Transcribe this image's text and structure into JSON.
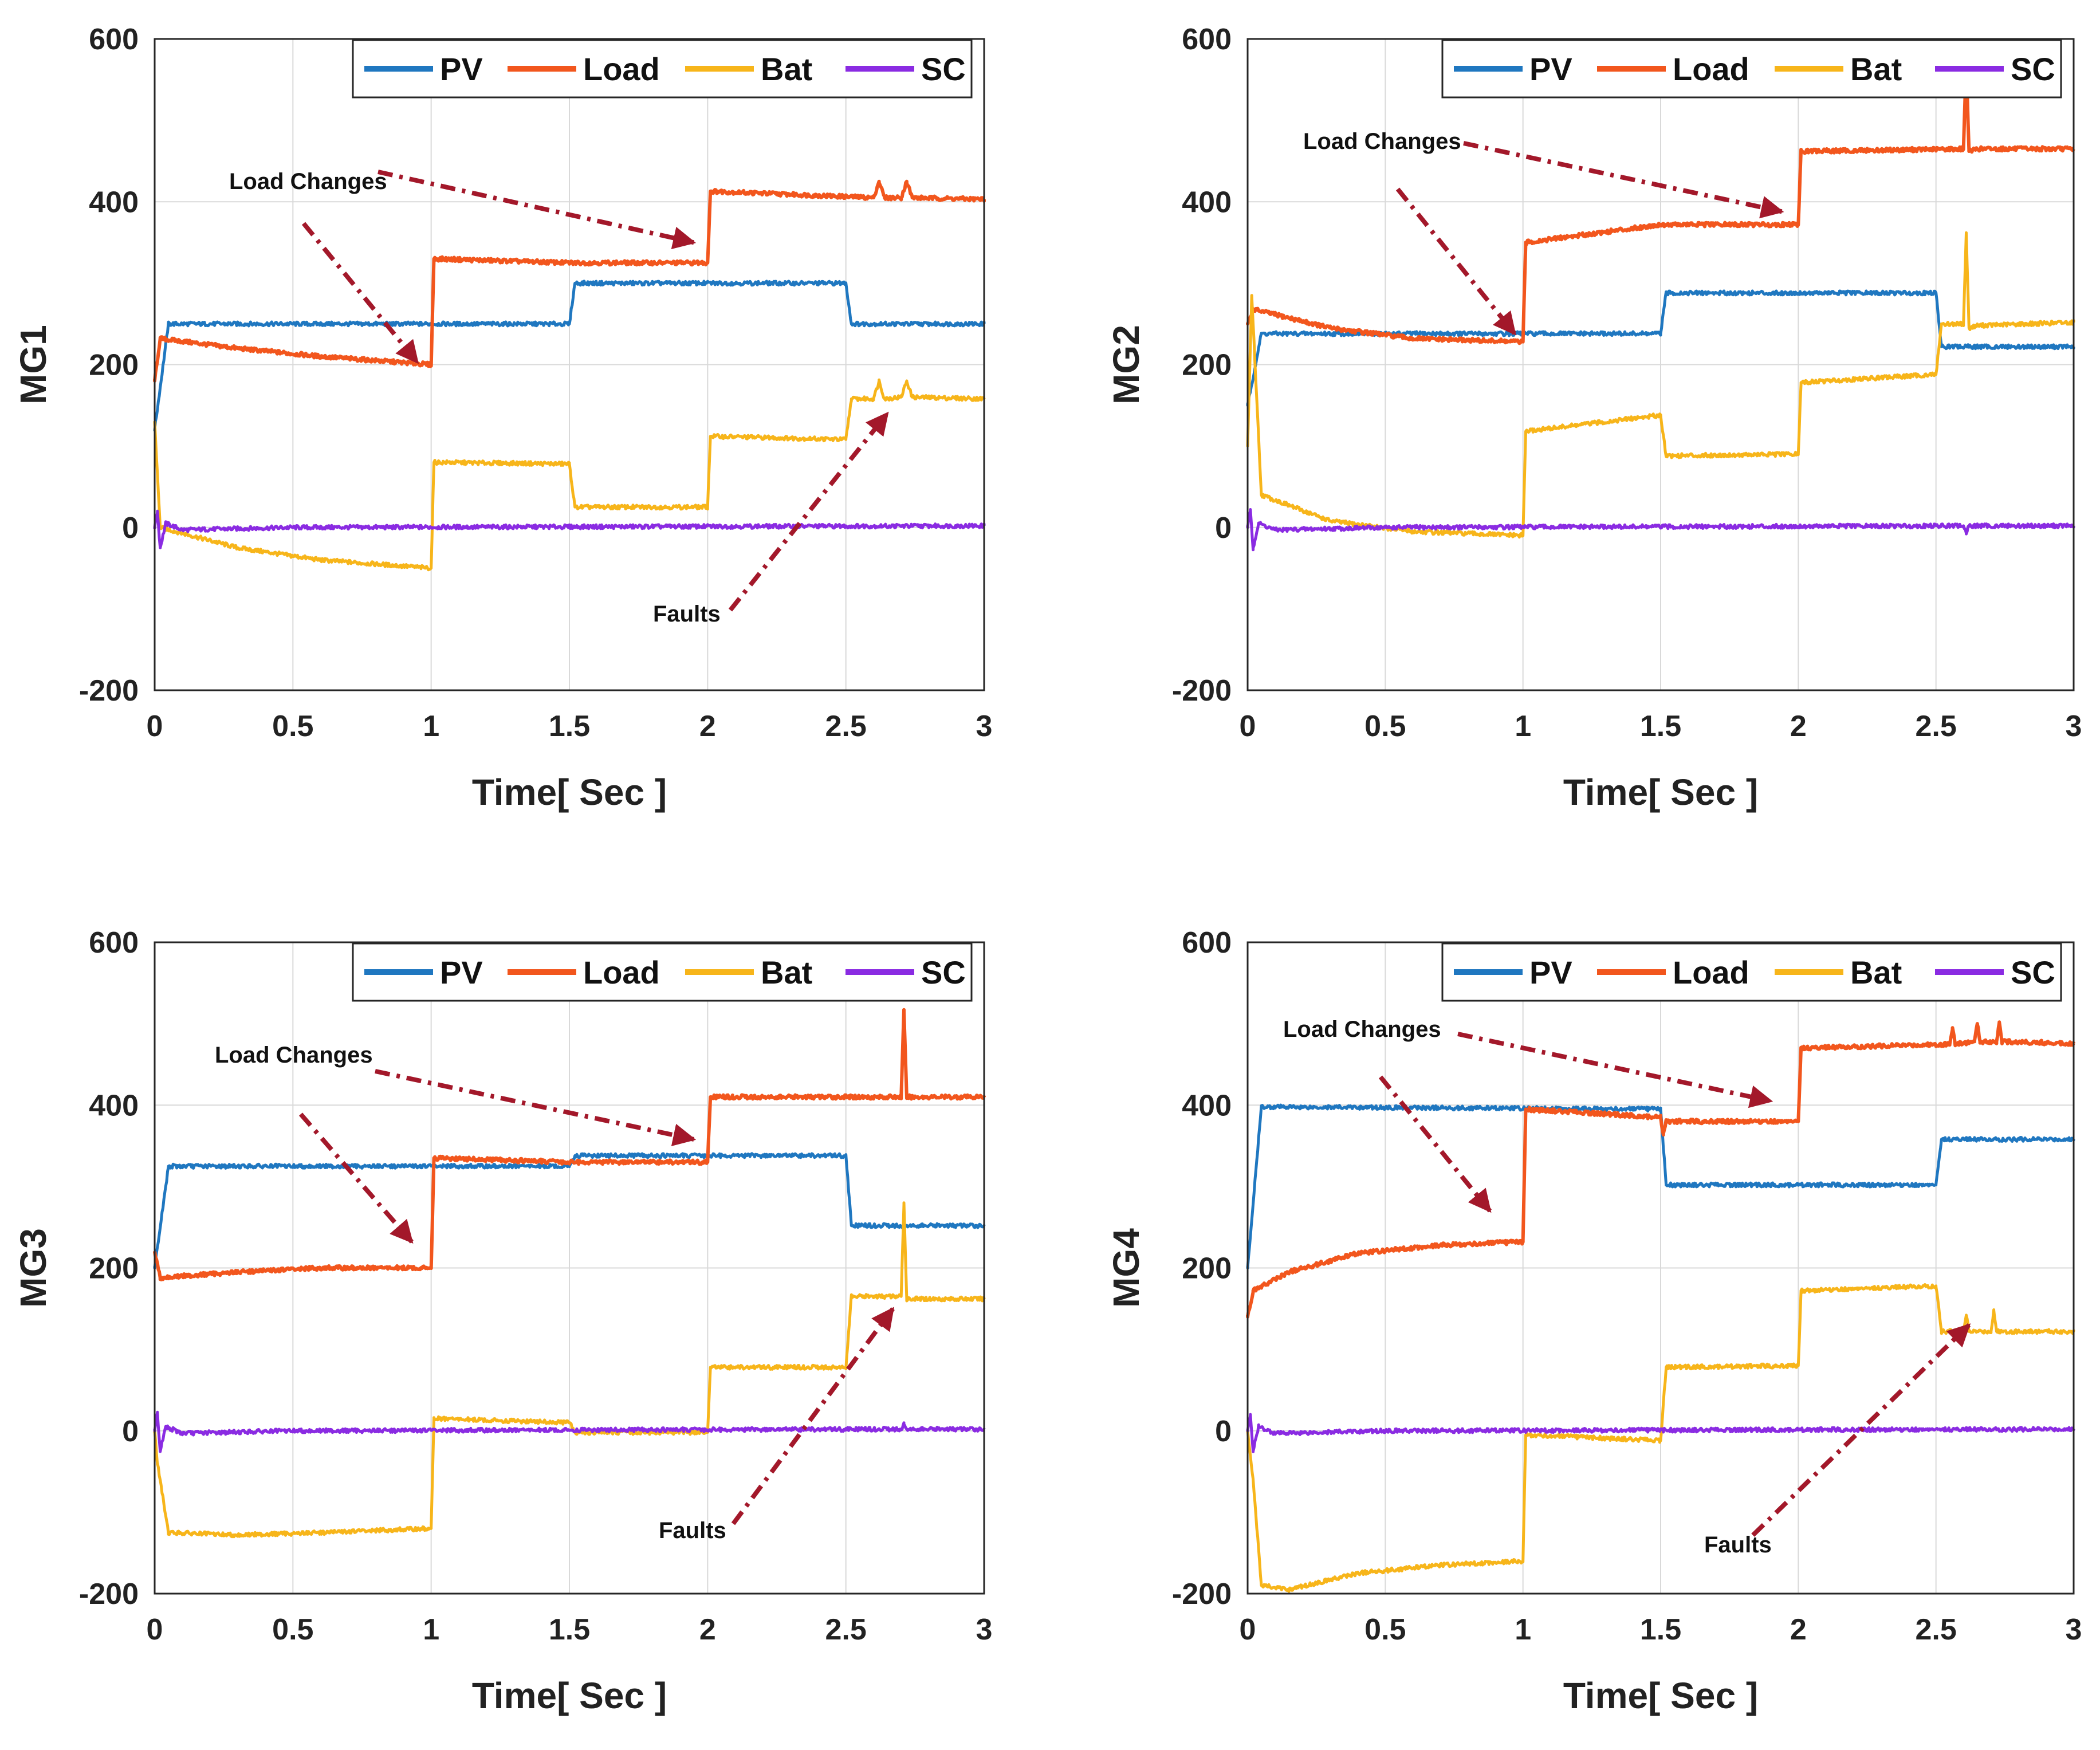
{
  "chart_data": [
    {
      "type": "line",
      "ylabel": "MG1",
      "xlabel": "Time[ Sec ]",
      "xlim": [
        0,
        3
      ],
      "ylim": [
        -200,
        600
      ],
      "xticks": [
        "0",
        "0.5",
        "1",
        "1.5",
        "2",
        "2.5",
        "3"
      ],
      "yticks": [
        "-200",
        "0",
        "200",
        "400",
        "600"
      ],
      "grid": true,
      "legend_position": "top-right",
      "colors": {
        "PV": "#1f77c0",
        "Load": "#f2561d",
        "Bat": "#f7b51a",
        "SC": "#8a2be2"
      },
      "series": [
        {
          "name": "PV",
          "x": [
            0,
            0.05,
            1.5,
            1.52,
            2.5,
            2.52,
            3
          ],
          "y": [
            120,
            250,
            250,
            300,
            300,
            250,
            250
          ]
        },
        {
          "name": "Load",
          "x": [
            0,
            0.02,
            0.3,
            0.6,
            1.0,
            1.01,
            1.5,
            2.0,
            2.01,
            2.6,
            2.62,
            2.64,
            2.7,
            2.72,
            2.74,
            3
          ],
          "y": [
            180,
            232,
            220,
            210,
            200,
            330,
            325,
            325,
            413,
            405,
            425,
            405,
            405,
            425,
            405,
            403
          ]
        },
        {
          "name": "Bat",
          "x": [
            0,
            0.02,
            0.3,
            0.6,
            1.0,
            1.01,
            1.5,
            1.52,
            2.0,
            2.01,
            2.5,
            2.52,
            2.6,
            2.62,
            2.64,
            2.7,
            2.72,
            2.74,
            3
          ],
          "y": [
            130,
            0,
            -25,
            -40,
            -50,
            80,
            78,
            25,
            25,
            112,
            108,
            158,
            158,
            180,
            158,
            160,
            180,
            160,
            158
          ]
        },
        {
          "name": "SC",
          "x": [
            0,
            0.01,
            0.02,
            0.04,
            0.1,
            0.5,
            3
          ],
          "y": [
            0,
            20,
            -25,
            5,
            -3,
            0,
            2
          ]
        }
      ],
      "annotations": [
        {
          "text": "Load Changes",
          "points_to": [
            [
              0.95,
              203
            ],
            [
              1.95,
              350
            ]
          ]
        },
        {
          "text": "Faults",
          "points_to": [
            [
              2.65,
              140
            ]
          ]
        }
      ]
    },
    {
      "type": "line",
      "ylabel": "MG2",
      "xlabel": "Time[ Sec ]",
      "xlim": [
        0,
        3
      ],
      "ylim": [
        -200,
        600
      ],
      "xticks": [
        "0",
        "0.5",
        "1",
        "1.5",
        "2",
        "2.5",
        "3"
      ],
      "yticks": [
        "-200",
        "0",
        "200",
        "400",
        "600"
      ],
      "grid": true,
      "legend_position": "top-right",
      "series": [
        {
          "name": "PV",
          "x": [
            0,
            0.05,
            1.5,
            1.52,
            2.5,
            2.52,
            3
          ],
          "y": [
            150,
            238,
            238,
            288,
            288,
            222,
            222
          ]
        },
        {
          "name": "Load",
          "x": [
            0,
            0.02,
            0.3,
            0.6,
            1.0,
            1.01,
            1.5,
            2.0,
            2.01,
            2.6,
            2.61,
            2.62,
            2.65,
            3
          ],
          "y": [
            250,
            268,
            245,
            232,
            228,
            350,
            372,
            372,
            462,
            465,
            572,
            462,
            465,
            465
          ]
        },
        {
          "name": "Bat",
          "x": [
            0,
            0.015,
            0.05,
            0.3,
            0.6,
            1.0,
            1.01,
            1.5,
            1.52,
            2.0,
            2.01,
            2.5,
            2.52,
            2.6,
            2.61,
            2.62,
            2.65,
            3
          ],
          "y": [
            100,
            285,
            40,
            8,
            -5,
            -10,
            118,
            138,
            88,
            90,
            178,
            188,
            250,
            250,
            362,
            245,
            248,
            252
          ]
        },
        {
          "name": "SC",
          "x": [
            0,
            0.01,
            0.02,
            0.04,
            0.1,
            0.5,
            2.6,
            2.61,
            2.62,
            3
          ],
          "y": [
            0,
            22,
            -25,
            5,
            -3,
            0,
            2,
            -8,
            2,
            2
          ]
        }
      ],
      "annotations": [
        {
          "text": "Load Changes",
          "points_to": [
            [
              0.97,
              238
            ],
            [
              1.94,
              388
            ]
          ]
        }
      ]
    },
    {
      "type": "line",
      "ylabel": "MG3",
      "xlabel": "Time[ Sec ]",
      "xlim": [
        0,
        3
      ],
      "ylim": [
        -200,
        600
      ],
      "xticks": [
        "0",
        "0.5",
        "1",
        "1.5",
        "2",
        "2.5",
        "3"
      ],
      "yticks": [
        "-200",
        "0",
        "200",
        "400",
        "600"
      ],
      "grid": true,
      "legend_position": "top-right",
      "series": [
        {
          "name": "PV",
          "x": [
            0,
            0.05,
            1.5,
            1.52,
            2.5,
            2.52,
            3
          ],
          "y": [
            200,
            325,
            325,
            338,
            338,
            252,
            252
          ]
        },
        {
          "name": "Load",
          "x": [
            0,
            0.02,
            0.3,
            0.6,
            1.0,
            1.01,
            1.5,
            2.0,
            2.01,
            2.7,
            2.71,
            2.72,
            2.75,
            3
          ],
          "y": [
            220,
            188,
            195,
            200,
            200,
            335,
            330,
            330,
            410,
            410,
            515,
            410,
            410,
            410
          ]
        },
        {
          "name": "Bat",
          "x": [
            0,
            0.01,
            0.05,
            0.3,
            0.6,
            1.0,
            1.01,
            1.5,
            1.52,
            2.0,
            2.01,
            2.5,
            2.52,
            2.7,
            2.71,
            2.72,
            2.75,
            3
          ],
          "y": [
            0,
            -40,
            -125,
            -128,
            -125,
            -120,
            15,
            10,
            -2,
            -2,
            78,
            78,
            165,
            165,
            280,
            162,
            162,
            162
          ]
        },
        {
          "name": "SC",
          "x": [
            0,
            0.01,
            0.02,
            0.04,
            0.1,
            0.5,
            2.7,
            2.71,
            2.72,
            3
          ],
          "y": [
            0,
            22,
            -25,
            5,
            -3,
            0,
            2,
            8,
            2,
            2
          ]
        }
      ],
      "annotations": [
        {
          "text": "Load Changes",
          "points_to": [
            [
              0.93,
              232
            ],
            [
              1.95,
              358
            ]
          ]
        },
        {
          "text": "Faults",
          "points_to": [
            [
              2.67,
              150
            ]
          ]
        }
      ]
    },
    {
      "type": "line",
      "ylabel": "MG4",
      "xlabel": "Time[ Sec ]",
      "xlim": [
        0,
        3
      ],
      "ylim": [
        -200,
        600
      ],
      "xticks": [
        "0",
        "0.5",
        "1",
        "1.5",
        "2",
        "2.5",
        "3"
      ],
      "yticks": [
        "-200",
        "0",
        "200",
        "400",
        "600"
      ],
      "grid": true,
      "legend_position": "top-right",
      "series": [
        {
          "name": "PV",
          "x": [
            0,
            0.05,
            1.5,
            1.52,
            2.5,
            2.52,
            3
          ],
          "y": [
            200,
            398,
            395,
            302,
            302,
            358,
            358
          ]
        },
        {
          "name": "Load",
          "x": [
            0,
            0.02,
            0.15,
            0.4,
            0.7,
            1.0,
            1.01,
            1.5,
            1.51,
            1.52,
            2.0,
            2.01,
            2.55,
            2.56,
            2.57,
            2.64,
            2.65,
            2.66,
            2.72,
            2.73,
            2.74,
            3
          ],
          "y": [
            140,
            172,
            195,
            218,
            228,
            232,
            395,
            385,
            365,
            380,
            380,
            470,
            475,
            495,
            475,
            478,
            500,
            478,
            478,
            502,
            478,
            476
          ]
        },
        {
          "name": "Bat",
          "x": [
            0,
            0.02,
            0.05,
            0.15,
            0.4,
            0.7,
            1.0,
            1.01,
            1.5,
            1.52,
            2.0,
            2.01,
            2.5,
            2.52,
            2.6,
            2.61,
            2.62,
            2.7,
            2.71,
            2.72,
            3
          ],
          "y": [
            0,
            -60,
            -190,
            -195,
            -175,
            -165,
            -160,
            -5,
            -12,
            78,
            80,
            172,
            178,
            122,
            122,
            142,
            122,
            122,
            148,
            122,
            122
          ]
        },
        {
          "name": "SC",
          "x": [
            0,
            0.01,
            0.02,
            0.04,
            0.1,
            0.5,
            3
          ],
          "y": [
            0,
            20,
            -25,
            5,
            -3,
            0,
            2
          ]
        }
      ],
      "annotations": [
        {
          "text": "Load Changes",
          "points_to": [
            [
              0.88,
              270
            ],
            [
              1.9,
              405
            ]
          ]
        },
        {
          "text": "Faults",
          "points_to": [
            [
              2.62,
              130
            ]
          ]
        }
      ]
    }
  ]
}
